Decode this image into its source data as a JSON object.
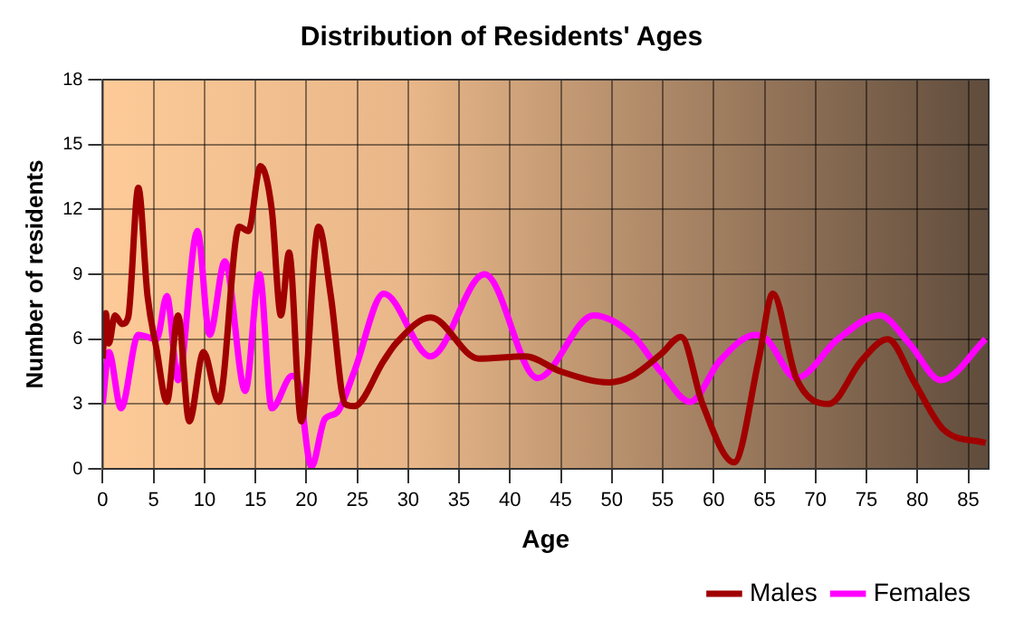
{
  "chart_data": {
    "type": "line",
    "title": "Distribution of Residents' Ages",
    "xlabel": "Age",
    "ylabel": "Number of residents",
    "xlim": [
      0,
      87
    ],
    "xticks": [
      0,
      5,
      10,
      15,
      20,
      25,
      30,
      35,
      40,
      45,
      50,
      55,
      60,
      65,
      70,
      75,
      80,
      85
    ],
    "ylim": [
      0,
      18
    ],
    "yticks": [
      0,
      3,
      6,
      9,
      12,
      15,
      18
    ],
    "grid": true,
    "legend": "bottom right",
    "marker": "none",
    "line_style": "solid",
    "series": [
      {
        "name": "Males",
        "color": "#a00000",
        "x": [
          0,
          0.3,
          0.6,
          1.2,
          1.9,
          2.5,
          3.5,
          4.4,
          5.3,
          6.3,
          7.4,
          8.5,
          9.9,
          11.4,
          13.4,
          14.3,
          15.5,
          16.6,
          17.5,
          18.3,
          19.5,
          21.2,
          22.4,
          23.8,
          24.7,
          27.6,
          28.8,
          32.2,
          36.9,
          41.5,
          45,
          49.7,
          52,
          54.8,
          56.8,
          58.9,
          62,
          64.4,
          65.8,
          68.1,
          71.3,
          74.5,
          77.1,
          79.7,
          82.6,
          86.7
        ],
        "values": [
          5.1,
          7.2,
          5.8,
          7.1,
          6.7,
          7,
          13,
          8,
          5.5,
          3.1,
          7.1,
          2.2,
          5.4,
          3.1,
          11.2,
          11,
          14,
          12,
          7.1,
          10,
          2.2,
          11.2,
          8,
          3,
          2.9,
          5,
          5.8,
          7,
          5.1,
          5.2,
          4.5,
          4,
          4.3,
          5.3,
          6.1,
          3,
          0.3,
          5,
          8.1,
          4.2,
          3,
          5,
          6,
          4,
          1.8,
          1.2
        ]
      },
      {
        "name": "Females",
        "color": "#ff00ff",
        "x": [
          0,
          0.6,
          1.8,
          3.5,
          5.3,
          6.3,
          7.4,
          9.3,
          10.5,
          12,
          14,
          15.4,
          16.6,
          18.6,
          19.2,
          20.5,
          21.8,
          23,
          24.7,
          27.6,
          32.2,
          37.5,
          42.7,
          48.2,
          52,
          54.8,
          57.7,
          60.6,
          64.1,
          65.2,
          68.1,
          72.2,
          76.3,
          79.2,
          82.3,
          86.7
        ],
        "values": [
          3,
          5.4,
          2.8,
          6.2,
          6,
          8,
          4.1,
          11,
          6.2,
          9.6,
          3.6,
          9,
          2.8,
          4.3,
          4,
          0.1,
          2.3,
          2.6,
          4.5,
          8.1,
          5.2,
          9,
          4.2,
          7.1,
          6.2,
          4.5,
          3.1,
          5,
          6.2,
          6,
          4.2,
          6,
          7.1,
          5.8,
          4.1,
          6
        ]
      }
    ]
  }
}
